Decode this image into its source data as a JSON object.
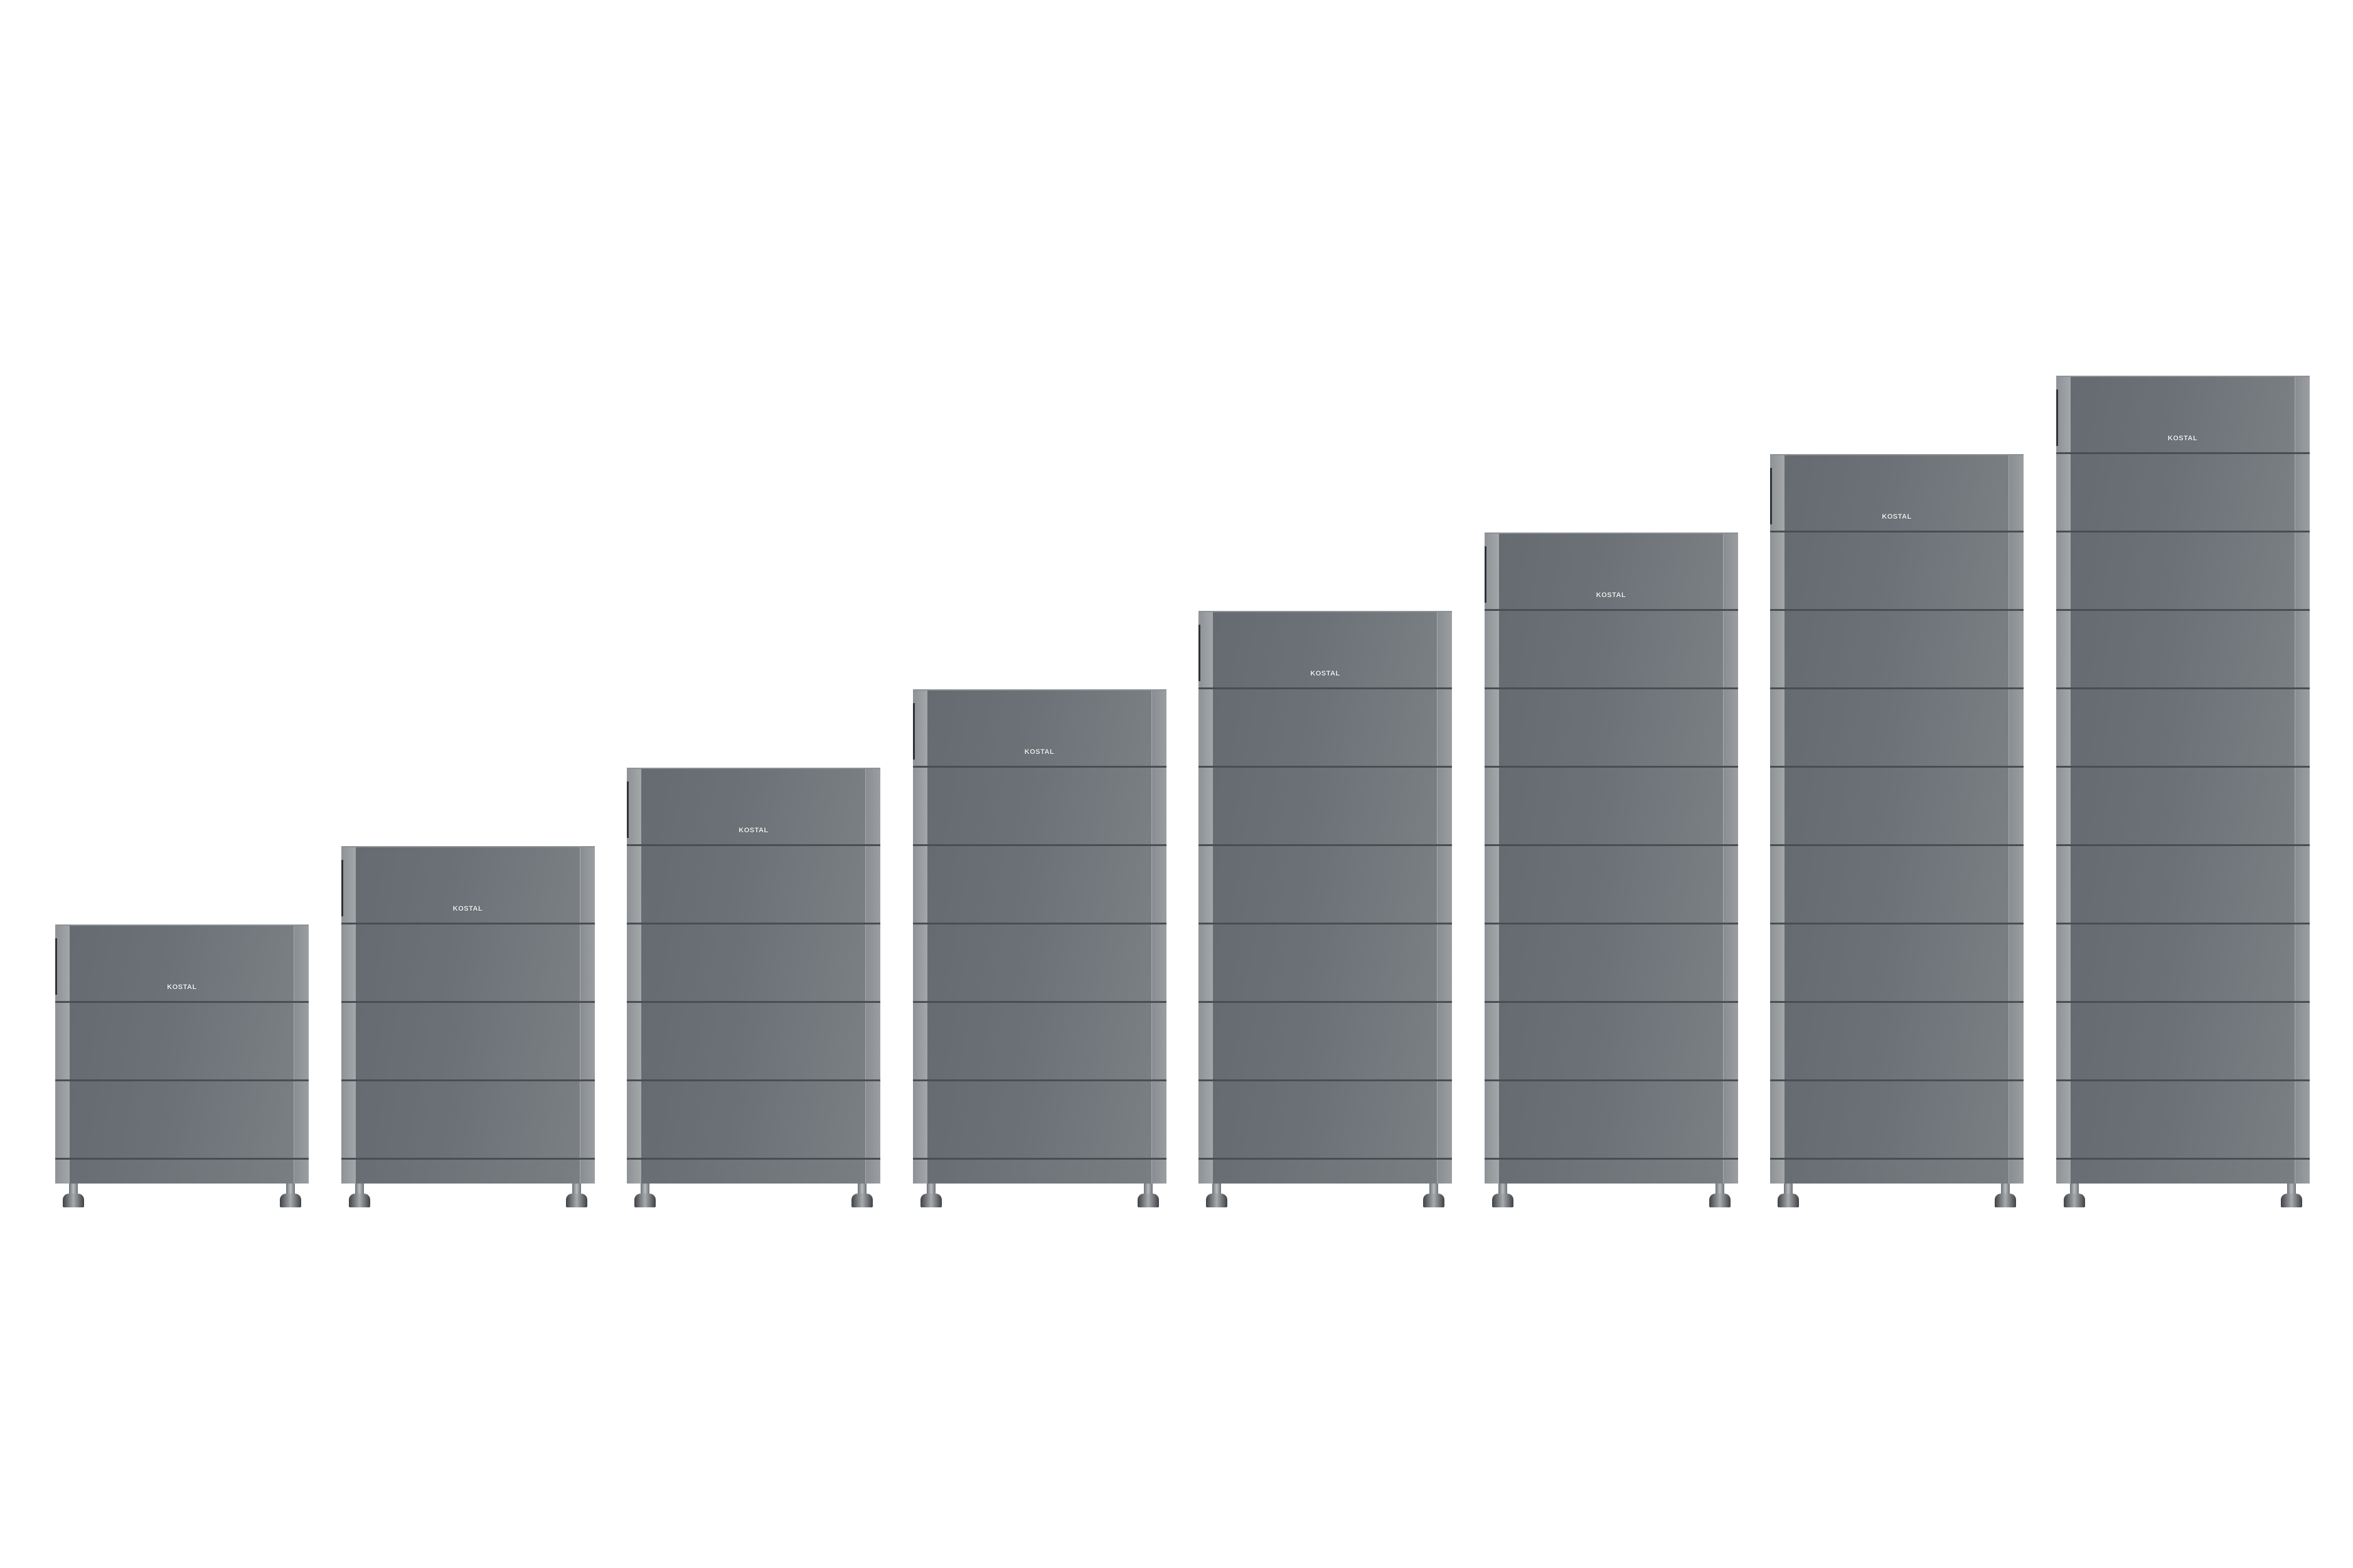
{
  "scene": {
    "brand_logo": "KOSTAL",
    "product_colors": {
      "module": "#6c7177",
      "pilaster": "#9a9ea1",
      "seam": "#4a4e53",
      "background": "#ffffff"
    },
    "stacks": [
      {
        "modules": 3
      },
      {
        "modules": 4
      },
      {
        "modules": 5
      },
      {
        "modules": 6
      },
      {
        "modules": 7
      },
      {
        "modules": 8
      },
      {
        "modules": 9
      },
      {
        "modules": 10
      }
    ]
  }
}
